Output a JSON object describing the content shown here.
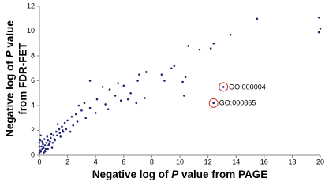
{
  "chart_data": {
    "type": "scatter",
    "x_label_parts": [
      "Negative log of ",
      "P",
      " value from PAGE"
    ],
    "y_label_parts": [
      "Negative log of ",
      "P",
      " value",
      "from FDR-FET"
    ],
    "xlim": [
      0,
      20
    ],
    "xticks": [
      0,
      2,
      4,
      6,
      8,
      10,
      12,
      14,
      16,
      18,
      20
    ],
    "ylim": [
      0,
      12
    ],
    "yticks": [
      0,
      2,
      4,
      6,
      8,
      10,
      12
    ],
    "grid": false,
    "series": [
      {
        "color": "#1f2470",
        "x": [
          19.9,
          20,
          19.9,
          15.5,
          13.6,
          12.4,
          12.2,
          11.4,
          10.6,
          10.4,
          10.2,
          9.6,
          9.4,
          8.9,
          8.7,
          7.6,
          7.1,
          7.0,
          6.9,
          6.5,
          6.0,
          5.6,
          5.0,
          4.5,
          4.1,
          3.6,
          10.3,
          6.3,
          7.5,
          5.4,
          5.8,
          4.7,
          4.9,
          3.6,
          3.2,
          2.8,
          2.6,
          3.0,
          2.3,
          2.0,
          1.8,
          1.6,
          1.4,
          1.2,
          1.0,
          0.8,
          0.6,
          0.5,
          0.4,
          0.3,
          0.2,
          0.1,
          0.05,
          0.1,
          2.4,
          3.3,
          4.0,
          1.5,
          1.1,
          0.7,
          0.9,
          0.4,
          2.2,
          1.9,
          2.7,
          0.2,
          0.3,
          1.3,
          0.6,
          1.7,
          13.1,
          12.4,
          0.05,
          0.15,
          0.25,
          0.35,
          0.45,
          0.55,
          0.65,
          0.75,
          0.85,
          0.95,
          1.05,
          1.25,
          1.45,
          1.65,
          0.0,
          0.0,
          0.0
        ],
        "y": [
          11.1,
          10.2,
          9.9,
          11.0,
          9.7,
          9.0,
          8.6,
          8.5,
          8.8,
          6.3,
          5.9,
          7.2,
          7.0,
          6.0,
          6.5,
          6.7,
          6.5,
          6.0,
          4.2,
          5.0,
          5.6,
          5.8,
          5.3,
          5.5,
          4.5,
          6.0,
          4.8,
          4.5,
          4.6,
          4.8,
          4.4,
          4.1,
          3.7,
          3.8,
          4.2,
          4.0,
          3.3,
          3.6,
          3.1,
          2.8,
          2.6,
          2.3,
          2.1,
          1.9,
          1.6,
          1.4,
          1.2,
          1.0,
          0.8,
          0.6,
          0.5,
          0.3,
          1.2,
          1.6,
          2.4,
          3.0,
          3.4,
          1.5,
          1.2,
          0.9,
          0.6,
          0.3,
          1.9,
          2.1,
          2.7,
          1.1,
          0.2,
          2.5,
          0.5,
          1.9,
          5.5,
          4.2,
          0.4,
          0.7,
          0.9,
          1.3,
          0.5,
          1.5,
          0.8,
          1.1,
          1.7,
          1.0,
          1.3,
          1.6,
          1.8,
          2.0,
          0.2,
          0.7,
          1.0
        ]
      }
    ],
    "annotations": [
      {
        "text": "GO:000004",
        "x": 13.1,
        "y": 5.5
      },
      {
        "text": "GO:000865",
        "x": 12.4,
        "y": 4.2
      }
    ]
  }
}
